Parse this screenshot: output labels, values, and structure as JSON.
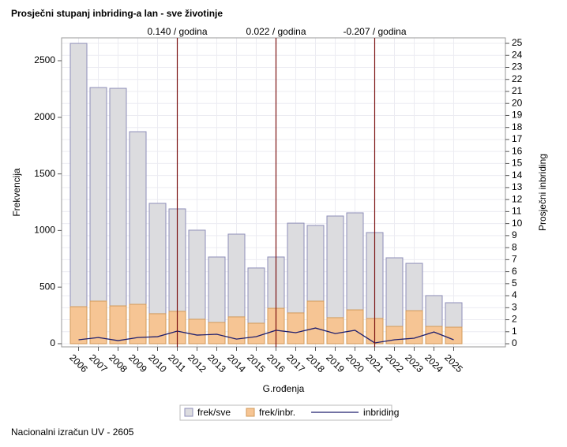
{
  "chart_data": {
    "type": "bar",
    "title": "Prosječni stupanj inbriding-a lan - sve životinje",
    "x_label": "G.rođenja",
    "y_label": "Frekvencija",
    "y2_label": "Prosječni inbriding",
    "footer": "Nacionalni izračun UV - 2605",
    "categories": [
      "2006",
      "2007",
      "2008",
      "2009",
      "2010",
      "2011",
      "2012",
      "2013",
      "2014",
      "2015",
      "2016",
      "2017",
      "2018",
      "2019",
      "2020",
      "2021",
      "2022",
      "2023",
      "2024",
      "2025"
    ],
    "series": [
      {
        "name": "frek/sve",
        "type": "bar",
        "color": "#dcdcdf",
        "values": [
          2653,
          2263,
          2256,
          1873,
          1240,
          1191,
          1003,
          766,
          968,
          669,
          766,
          1065,
          1045,
          1128,
          1156,
          982,
          759,
          710,
          425,
          362
        ]
      },
      {
        "name": "frek/inbr.",
        "type": "bar",
        "color": "#f6c594",
        "values": [
          327,
          376,
          334,
          348,
          265,
          286,
          216,
          188,
          237,
          181,
          313,
          272,
          376,
          230,
          299,
          223,
          153,
          292,
          153,
          146
        ]
      },
      {
        "name": "inbriding",
        "type": "line",
        "axis": "y2",
        "color": "#1f1f6e",
        "values": [
          0.33,
          0.52,
          0.26,
          0.52,
          0.59,
          1.05,
          0.72,
          0.79,
          0.39,
          0.59,
          1.12,
          0.92,
          1.31,
          0.85,
          1.12,
          0.07,
          0.33,
          0.46,
          0.98,
          0.33
        ]
      }
    ],
    "reference_lines": [
      {
        "category": "2011",
        "label": "0.140 / godina"
      },
      {
        "category": "2016",
        "label": "0.022 / godina"
      },
      {
        "category": "2021",
        "label": "-0.207 / godina"
      }
    ],
    "ref_color": "#7a1010",
    "ylim": [
      -28,
      2702
    ],
    "yticks": [
      0,
      500,
      1000,
      1500,
      2000,
      2500
    ],
    "y2lim": [
      -0.26,
      25.46
    ],
    "y2ticks": [
      0,
      1,
      2,
      3,
      4,
      5,
      6,
      7,
      8,
      9,
      10,
      11,
      12,
      13,
      14,
      15,
      16,
      17,
      18,
      19,
      20,
      21,
      22,
      23,
      24,
      25
    ],
    "grid": true
  }
}
